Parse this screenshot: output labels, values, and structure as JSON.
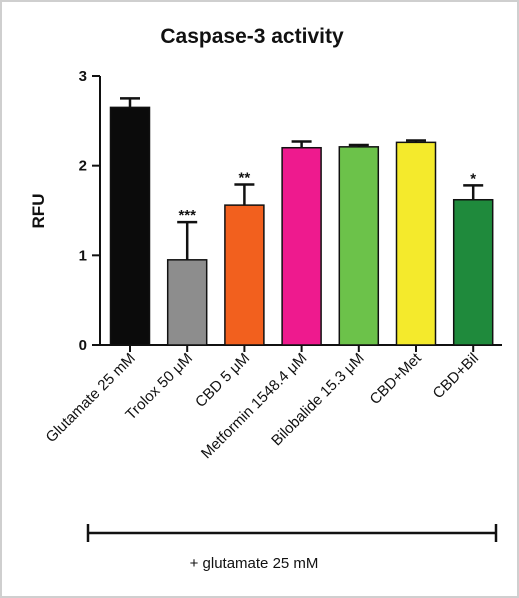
{
  "chart_data": {
    "type": "bar",
    "title": "Caspase-3 activity",
    "ylabel": "RFU",
    "xlabel": "",
    "ylim": [
      0,
      3
    ],
    "yticks": [
      "0",
      "1",
      "2",
      "3"
    ],
    "grid": false,
    "legend": "none",
    "categories": [
      "Glutamate 25 mM",
      "Trolox 50 μM",
      "CBD 5 μM",
      "Metformin 1548.4 μM",
      "Bilobalide 15.3 μM",
      "CBD+Met",
      "CBD+Bil"
    ],
    "values": [
      2.65,
      0.95,
      1.56,
      2.2,
      2.21,
      2.26,
      1.62
    ],
    "errors": [
      0.1,
      0.42,
      0.23,
      0.07,
      0.02,
      0.02,
      0.16
    ],
    "significance": [
      "",
      "***",
      "**",
      "",
      "",
      "",
      "*"
    ],
    "colors": [
      "#0b0b0b",
      "#8d8d8d",
      "#f2601e",
      "#ee1a8e",
      "#6cc24a",
      "#f4ea2c",
      "#1f8a3c"
    ],
    "bracket_label": "+ glutamate 25 mM"
  }
}
